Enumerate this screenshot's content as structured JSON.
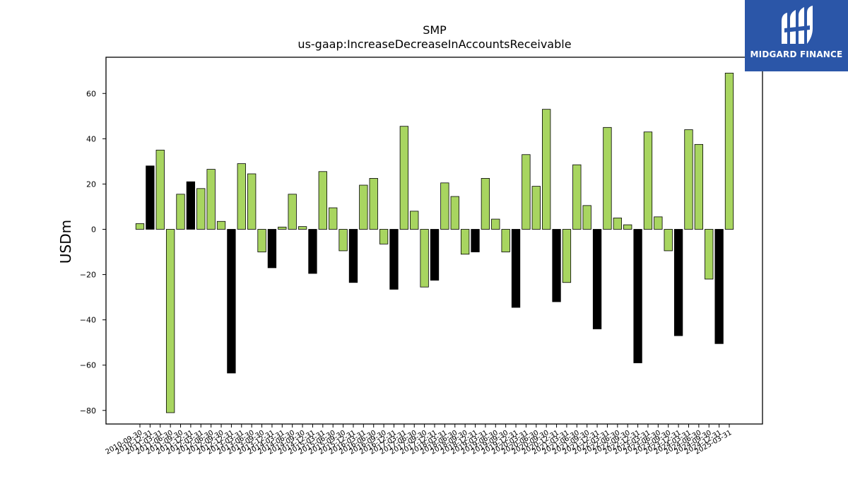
{
  "brand": {
    "name": "MIDGARD FINANCE",
    "color": "#2b56a8"
  },
  "chart_data": {
    "type": "bar",
    "title": "SMP",
    "subtitle": "us-gaap:IncreaseDecreaseInAccountsReceivable",
    "ylabel": "USDm",
    "xlabel": "",
    "ylim": [
      -86,
      76
    ],
    "yticks": [
      -80,
      -60,
      -40,
      -20,
      0,
      20,
      40,
      60
    ],
    "grid": false,
    "positive_color": "#a8d560",
    "negative_color": "#a8d560",
    "highlight_color": "#000000",
    "categories": [
      "2010-09-30",
      "2010-12-31",
      "2011-03-31",
      "2011-06-30",
      "2011-09-30",
      "2011-12-31",
      "2012-03-31",
      "2012-06-30",
      "2012-09-30",
      "2012-12-31",
      "2013-03-31",
      "2013-06-30",
      "2013-09-30",
      "2013-12-31",
      "2014-03-31",
      "2014-06-30",
      "2014-09-30",
      "2014-12-31",
      "2015-03-31",
      "2015-06-30",
      "2015-09-30",
      "2015-12-31",
      "2016-03-31",
      "2016-06-30",
      "2016-09-30",
      "2016-12-31",
      "2017-03-31",
      "2017-06-30",
      "2017-09-30",
      "2017-12-31",
      "2018-03-31",
      "2018-06-30",
      "2018-09-30",
      "2018-12-31",
      "2019-03-31",
      "2019-06-30",
      "2019-09-30",
      "2019-12-31",
      "2020-03-31",
      "2020-06-30",
      "2020-09-30",
      "2020-12-31",
      "2021-03-31",
      "2021-06-30",
      "2021-09-30",
      "2021-12-31",
      "2022-03-31",
      "2022-06-30",
      "2022-09-30",
      "2022-12-31",
      "2023-03-31",
      "2023-06-30",
      "2023-09-30",
      "2023-12-31",
      "2024-03-31",
      "2024-06-30",
      "2024-09-30",
      "2024-12-31",
      "2025-03-31"
    ],
    "values": [
      2.5,
      28,
      35,
      -81,
      15.5,
      21,
      18,
      26.5,
      3.5,
      -63.5,
      29,
      24.5,
      -10,
      -17,
      1,
      15.5,
      1.2,
      -19.5,
      25.5,
      9.5,
      -9.5,
      -23.5,
      19.5,
      22.5,
      -6.5,
      -26.5,
      45.5,
      8,
      -25.5,
      -22.5,
      20.5,
      14.5,
      -11,
      -10,
      22.5,
      4.5,
      -10,
      -34.5,
      33,
      19,
      53,
      -32,
      -23.5,
      28.5,
      10.5,
      -44,
      45,
      5,
      2,
      -59,
      43,
      5.5,
      -9.5,
      -47,
      44,
      37.5,
      -22,
      -50.5,
      69
    ],
    "highlighted": [
      false,
      true,
      false,
      false,
      false,
      true,
      false,
      false,
      false,
      true,
      false,
      false,
      false,
      true,
      false,
      false,
      false,
      true,
      false,
      false,
      false,
      true,
      false,
      false,
      false,
      true,
      false,
      false,
      false,
      true,
      false,
      false,
      false,
      true,
      false,
      false,
      false,
      true,
      false,
      false,
      false,
      true,
      false,
      false,
      false,
      true,
      false,
      false,
      false,
      true,
      false,
      false,
      false,
      true,
      false,
      false,
      false,
      true,
      false
    ]
  }
}
